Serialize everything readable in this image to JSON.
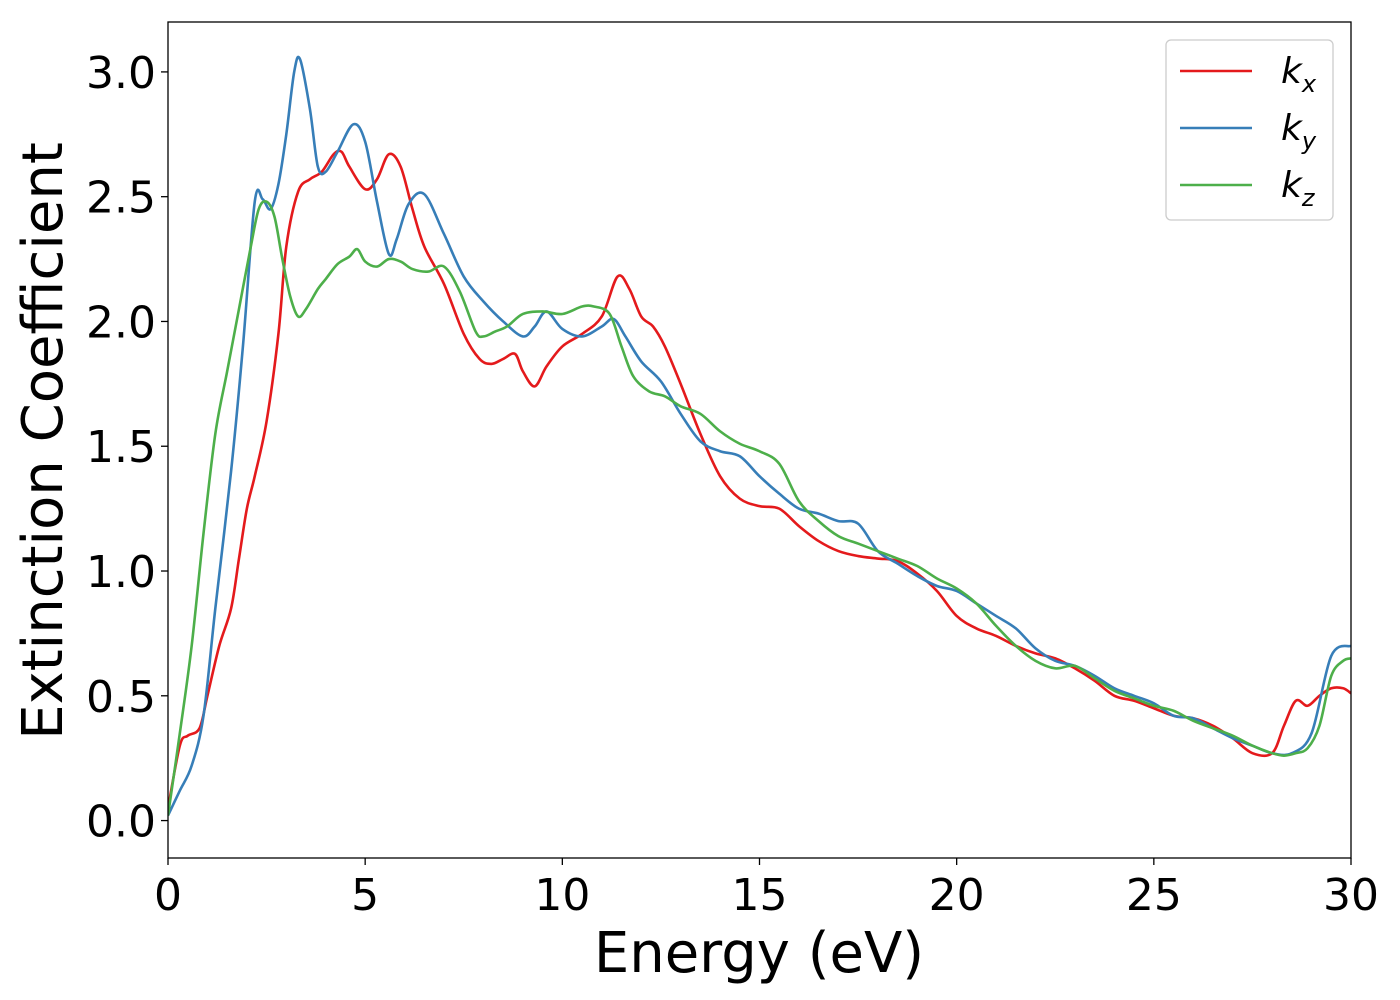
{
  "chart_data": {
    "type": "line",
    "title": "",
    "xlabel": "Energy (eV)",
    "ylabel": "Extinction Coefficient",
    "xlim": [
      0,
      30
    ],
    "ylim": [
      -0.15,
      3.2
    ],
    "xticks": [
      0,
      5,
      10,
      15,
      20,
      25,
      30
    ],
    "xtick_labels": [
      "0",
      "5",
      "10",
      "15",
      "20",
      "25",
      "30"
    ],
    "yticks": [
      0.0,
      0.5,
      1.0,
      1.5,
      2.0,
      2.5,
      3.0
    ],
    "ytick_labels": [
      "0.0",
      "0.5",
      "1.0",
      "1.5",
      "2.0",
      "2.5",
      "3.0"
    ],
    "grid": false,
    "legend_position": "top-right",
    "series": [
      {
        "name": "k",
        "subscript": "x",
        "color": "#e41a1c",
        "x": [
          0,
          0.3,
          0.5,
          0.8,
          1.0,
          1.3,
          1.6,
          1.8,
          2.0,
          2.2,
          2.5,
          2.8,
          3.0,
          3.3,
          3.6,
          3.9,
          4.2,
          4.4,
          4.6,
          5.0,
          5.3,
          5.6,
          5.9,
          6.2,
          6.5,
          7.0,
          7.5,
          7.9,
          8.2,
          8.5,
          8.8,
          9.0,
          9.3,
          9.6,
          10.0,
          10.5,
          11.0,
          11.4,
          11.7,
          12.0,
          12.3,
          12.6,
          13.0,
          13.5,
          14.0,
          14.5,
          15.0,
          15.5,
          16.0,
          16.5,
          17.0,
          17.5,
          18.0,
          18.5,
          19.0,
          19.5,
          20.0,
          20.5,
          21.0,
          21.5,
          22.0,
          22.5,
          23.0,
          23.5,
          24.0,
          24.5,
          25.0,
          25.5,
          26.0,
          26.5,
          27.0,
          27.5,
          28.0,
          28.3,
          28.6,
          28.9,
          29.2,
          29.5,
          29.8,
          30.0
        ],
        "values": [
          0.05,
          0.3,
          0.34,
          0.37,
          0.5,
          0.7,
          0.85,
          1.05,
          1.25,
          1.38,
          1.6,
          1.95,
          2.3,
          2.52,
          2.57,
          2.6,
          2.67,
          2.68,
          2.62,
          2.53,
          2.57,
          2.67,
          2.62,
          2.45,
          2.3,
          2.15,
          1.95,
          1.85,
          1.83,
          1.85,
          1.87,
          1.8,
          1.74,
          1.82,
          1.9,
          1.95,
          2.02,
          2.18,
          2.13,
          2.02,
          1.98,
          1.9,
          1.75,
          1.55,
          1.38,
          1.29,
          1.26,
          1.25,
          1.18,
          1.12,
          1.08,
          1.06,
          1.05,
          1.04,
          0.99,
          0.92,
          0.82,
          0.77,
          0.74,
          0.7,
          0.67,
          0.65,
          0.61,
          0.56,
          0.5,
          0.48,
          0.45,
          0.42,
          0.41,
          0.38,
          0.33,
          0.27,
          0.27,
          0.38,
          0.48,
          0.46,
          0.5,
          0.53,
          0.53,
          0.51
        ]
      },
      {
        "name": "k",
        "subscript": "y",
        "color": "#377eb8",
        "x": [
          0,
          0.3,
          0.6,
          0.9,
          1.2,
          1.6,
          1.9,
          2.2,
          2.4,
          2.6,
          2.8,
          3.0,
          3.2,
          3.35,
          3.6,
          3.8,
          4.0,
          4.3,
          4.7,
          5.0,
          5.3,
          5.6,
          5.8,
          6.1,
          6.5,
          7.0,
          7.5,
          8.0,
          8.5,
          9.0,
          9.3,
          9.6,
          10.0,
          10.5,
          11.0,
          11.3,
          11.6,
          12.0,
          12.5,
          13.0,
          13.5,
          14.0,
          14.5,
          15.0,
          15.5,
          16.0,
          16.5,
          17.0,
          17.5,
          18.0,
          18.5,
          19.0,
          19.5,
          20.0,
          20.5,
          21.0,
          21.5,
          22.0,
          22.5,
          23.0,
          23.5,
          24.0,
          24.5,
          25.0,
          25.5,
          26.0,
          26.5,
          27.0,
          27.5,
          28.0,
          28.5,
          29.0,
          29.5,
          30.0
        ],
        "values": [
          0.02,
          0.12,
          0.22,
          0.42,
          0.85,
          1.4,
          1.9,
          2.48,
          2.49,
          2.45,
          2.55,
          2.75,
          3.0,
          3.05,
          2.85,
          2.62,
          2.6,
          2.68,
          2.79,
          2.72,
          2.48,
          2.27,
          2.33,
          2.47,
          2.51,
          2.35,
          2.18,
          2.08,
          2.0,
          1.94,
          1.98,
          2.04,
          1.97,
          1.94,
          1.98,
          2.01,
          1.94,
          1.84,
          1.76,
          1.63,
          1.52,
          1.48,
          1.46,
          1.38,
          1.31,
          1.25,
          1.23,
          1.2,
          1.19,
          1.08,
          1.03,
          0.98,
          0.94,
          0.92,
          0.87,
          0.82,
          0.77,
          0.69,
          0.64,
          0.62,
          0.58,
          0.53,
          0.5,
          0.47,
          0.42,
          0.41,
          0.37,
          0.33,
          0.3,
          0.27,
          0.27,
          0.35,
          0.66,
          0.7
        ]
      },
      {
        "name": "k",
        "subscript": "z",
        "color": "#4daf4a",
        "x": [
          0,
          0.3,
          0.6,
          0.9,
          1.2,
          1.5,
          1.8,
          2.1,
          2.3,
          2.5,
          2.7,
          2.9,
          3.1,
          3.3,
          3.5,
          3.8,
          4.0,
          4.3,
          4.6,
          4.8,
          5.0,
          5.3,
          5.6,
          5.9,
          6.2,
          6.6,
          7.0,
          7.4,
          7.8,
          8.0,
          8.3,
          8.6,
          9.0,
          9.5,
          10.0,
          10.5,
          10.8,
          11.2,
          11.5,
          11.8,
          12.2,
          12.6,
          13.0,
          13.5,
          14.0,
          14.5,
          15.0,
          15.5,
          16.0,
          16.5,
          17.0,
          17.5,
          18.0,
          18.5,
          19.0,
          19.5,
          20.0,
          20.5,
          21.0,
          21.5,
          22.0,
          22.5,
          23.0,
          23.5,
          24.0,
          24.5,
          25.0,
          25.5,
          26.0,
          26.5,
          27.0,
          27.5,
          28.0,
          28.3,
          28.6,
          28.9,
          29.2,
          29.5,
          29.8,
          30.0
        ],
        "values": [
          0.02,
          0.35,
          0.7,
          1.15,
          1.55,
          1.8,
          2.05,
          2.3,
          2.45,
          2.48,
          2.42,
          2.25,
          2.1,
          2.02,
          2.05,
          2.13,
          2.17,
          2.23,
          2.26,
          2.29,
          2.24,
          2.22,
          2.25,
          2.24,
          2.21,
          2.2,
          2.22,
          2.12,
          1.96,
          1.94,
          1.96,
          1.98,
          2.03,
          2.04,
          2.03,
          2.06,
          2.06,
          2.03,
          1.9,
          1.78,
          1.72,
          1.7,
          1.66,
          1.63,
          1.56,
          1.51,
          1.48,
          1.43,
          1.28,
          1.2,
          1.14,
          1.11,
          1.08,
          1.05,
          1.02,
          0.97,
          0.93,
          0.87,
          0.78,
          0.7,
          0.64,
          0.61,
          0.62,
          0.57,
          0.52,
          0.49,
          0.46,
          0.44,
          0.4,
          0.37,
          0.34,
          0.3,
          0.27,
          0.26,
          0.27,
          0.29,
          0.38,
          0.58,
          0.64,
          0.65
        ]
      }
    ]
  }
}
